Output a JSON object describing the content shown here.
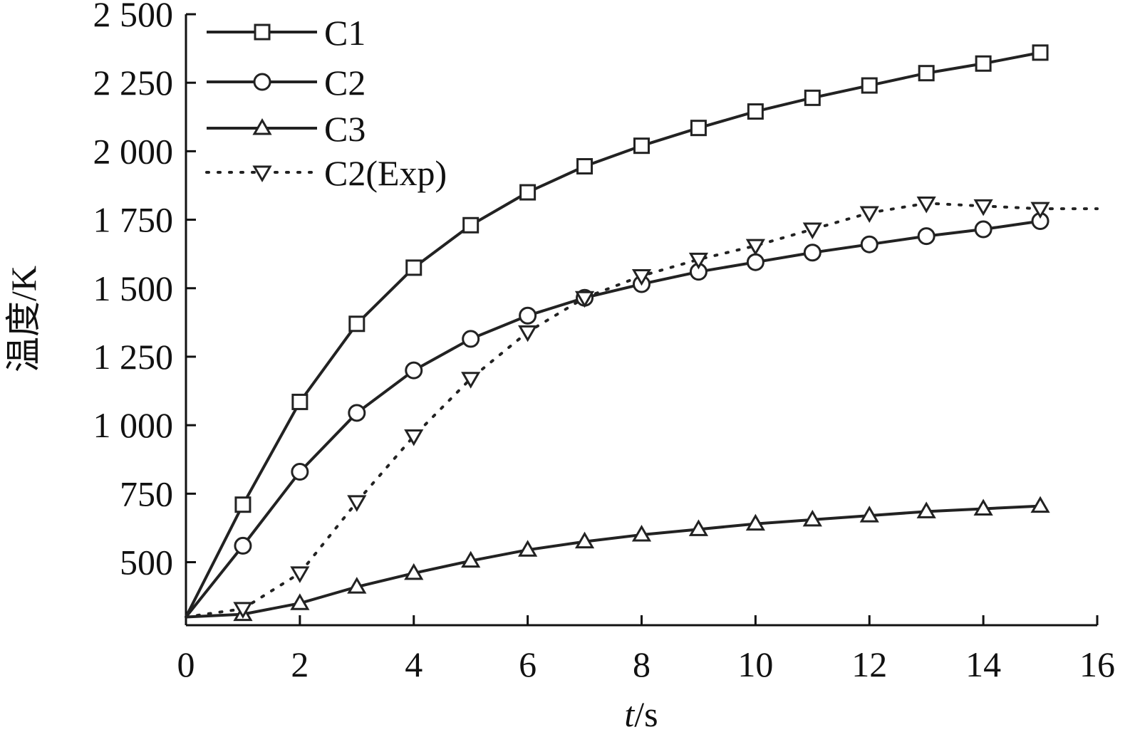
{
  "chart_data": {
    "type": "line",
    "xlabel_italic": "t",
    "xlabel_rest": "/s",
    "ylabel": "温度/K",
    "xlim": [
      0,
      16
    ],
    "ylim": [
      270,
      2500
    ],
    "xticks": [
      0,
      2,
      4,
      6,
      8,
      10,
      12,
      14,
      16
    ],
    "yticks": [
      500,
      750,
      1000,
      1250,
      1500,
      1750,
      2000,
      2250,
      2500
    ],
    "ytick_labels": [
      "500",
      "750",
      "1 000",
      "1 250",
      "1 500",
      "1 750",
      "2 000",
      "2 250",
      "2 500"
    ],
    "grid": false,
    "legend_position": "top-left",
    "series": [
      {
        "name": "C1",
        "marker": "square",
        "line_style": "solid",
        "x": [
          0,
          1,
          2,
          3,
          4,
          5,
          6,
          7,
          8,
          9,
          10,
          11,
          12,
          13,
          14,
          15
        ],
        "y": [
          300,
          710,
          1085,
          1370,
          1575,
          1730,
          1850,
          1945,
          2020,
          2085,
          2145,
          2195,
          2240,
          2285,
          2320,
          2360
        ]
      },
      {
        "name": "C2",
        "marker": "circle",
        "line_style": "solid",
        "x": [
          0,
          1,
          2,
          3,
          4,
          5,
          6,
          7,
          8,
          9,
          10,
          11,
          12,
          13,
          14,
          15
        ],
        "y": [
          300,
          560,
          830,
          1045,
          1200,
          1315,
          1400,
          1465,
          1515,
          1560,
          1595,
          1630,
          1660,
          1690,
          1715,
          1745
        ]
      },
      {
        "name": "C3",
        "marker": "triangle-up",
        "line_style": "solid",
        "x": [
          0,
          1,
          2,
          3,
          4,
          5,
          6,
          7,
          8,
          9,
          10,
          11,
          12,
          13,
          14,
          15
        ],
        "y": [
          300,
          310,
          350,
          410,
          460,
          505,
          545,
          575,
          600,
          620,
          640,
          655,
          670,
          685,
          695,
          705
        ]
      },
      {
        "name": "C2(Exp)",
        "marker": "triangle-down",
        "line_style": "dotted",
        "x": [
          0,
          1,
          2,
          3,
          4,
          5,
          6,
          7,
          8,
          9,
          10,
          11,
          12,
          13,
          14,
          15,
          16
        ],
        "y": [
          300,
          330,
          460,
          720,
          960,
          1170,
          1340,
          1465,
          1545,
          1605,
          1655,
          1715,
          1775,
          1810,
          1800,
          1790,
          1790
        ],
        "markers_through_x": 15
      }
    ]
  }
}
